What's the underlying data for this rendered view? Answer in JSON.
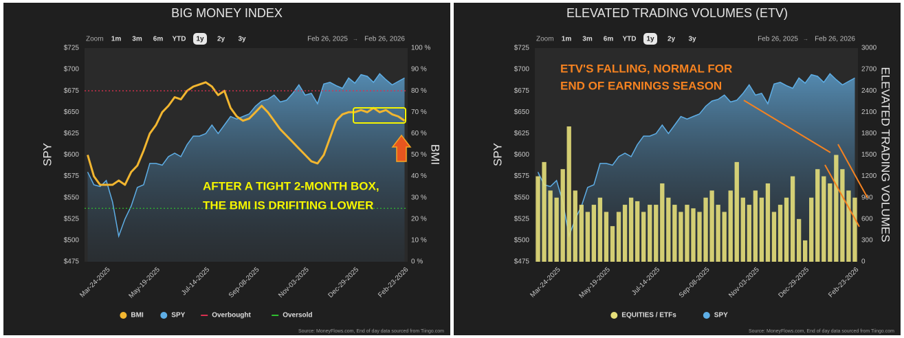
{
  "chart_data": [
    {
      "type": "line",
      "title": "BIG MONEY INDEX",
      "zoom_label": "Zoom",
      "zoom_buttons": [
        "1m",
        "3m",
        "6m",
        "YTD",
        "1y",
        "2y",
        "3y"
      ],
      "zoom_selected": "1y",
      "range_start": "Feb 26, 2025",
      "range_arrow": "→",
      "range_end": "Feb 26, 2026",
      "ylabel": "SPY",
      "y2label": "BMI",
      "categories": [
        null,
        null,
        null,
        "Mar-24-2025",
        null,
        null,
        null,
        null,
        null,
        null,
        null,
        "May-19-2025",
        null,
        null,
        null,
        null,
        null,
        null,
        null,
        "Jul-14-2025",
        null,
        null,
        null,
        null,
        null,
        null,
        null,
        "Sep-08-2025",
        null,
        null,
        null,
        null,
        null,
        null,
        null,
        "Nov-03-2025",
        null,
        null,
        null,
        null,
        null,
        null,
        null,
        "Dec-29-2025",
        null,
        null,
        null,
        null,
        null,
        null,
        null,
        "Feb-23-2026"
      ],
      "ylim": [
        475,
        725
      ],
      "yticks": [
        {
          "value": 475,
          "label": "$475"
        },
        {
          "value": 500,
          "label": "$500"
        },
        {
          "value": 525,
          "label": "$525"
        },
        {
          "value": 550,
          "label": "$550"
        },
        {
          "value": 575,
          "label": "$575"
        },
        {
          "value": 600,
          "label": "$600"
        },
        {
          "value": 625,
          "label": "$625"
        },
        {
          "value": 650,
          "label": "$650"
        },
        {
          "value": 675,
          "label": "$675"
        },
        {
          "value": 700,
          "label": "$700"
        },
        {
          "value": 725,
          "label": "$725"
        }
      ],
      "y2lim": [
        0,
        100
      ],
      "y2ticks": [
        {
          "value": 0,
          "label": "0 %"
        },
        {
          "value": 10,
          "label": "10 %"
        },
        {
          "value": 20,
          "label": "20 %"
        },
        {
          "value": 30,
          "label": "30 %"
        },
        {
          "value": 40,
          "label": "40 %"
        },
        {
          "value": 50,
          "label": "50 %"
        },
        {
          "value": 60,
          "label": "60 %"
        },
        {
          "value": 70,
          "label": "70 %"
        },
        {
          "value": 80,
          "label": "80 %"
        },
        {
          "value": 90,
          "label": "90 %"
        },
        {
          "value": 100,
          "label": "100 %"
        }
      ],
      "series": [
        {
          "name": "BMI",
          "type": "line",
          "color": "#f2b630",
          "axis": "y2",
          "values": [
            50,
            40,
            36,
            36,
            36,
            38,
            36,
            42,
            45,
            52,
            60,
            64,
            70,
            73,
            77,
            76,
            80,
            82,
            83,
            84,
            82,
            78,
            80,
            72,
            68,
            66,
            67,
            70,
            73,
            70,
            66,
            62,
            59,
            56,
            53,
            50,
            47,
            46,
            50,
            58,
            66,
            69,
            70,
            70,
            71,
            70,
            72,
            70,
            71,
            69,
            68,
            66
          ]
        },
        {
          "name": "SPY",
          "type": "area",
          "color": "#5eaee6",
          "values": [
            580,
            565,
            563,
            570,
            545,
            505,
            525,
            540,
            562,
            565,
            590,
            590,
            588,
            598,
            602,
            598,
            612,
            622,
            622,
            625,
            635,
            625,
            635,
            645,
            642,
            645,
            648,
            657,
            663,
            665,
            670,
            662,
            664,
            672,
            682,
            670,
            672,
            660,
            683,
            685,
            681,
            678,
            690,
            684,
            694,
            692,
            685,
            695,
            688,
            682,
            686,
            690
          ]
        }
      ],
      "reference_lines": [
        {
          "name": "Overbought",
          "color": "#d9304f",
          "value": 80,
          "axis": "y2"
        },
        {
          "name": "Oversold",
          "color": "#2fbf2f",
          "value": 25,
          "axis": "y2"
        }
      ],
      "annotation": {
        "lines": [
          "AFTER A TIGHT 2-MONTH BOX,",
          "THE BMI IS DRIFITING LOWER"
        ],
        "color": "#f5f500"
      },
      "source": "Source: MoneyFlows.com, End of day data sourced from Tiingo.com"
    },
    {
      "type": "bar",
      "title": "ELEVATED TRADING VOLUMES (ETV)",
      "zoom_label": "Zoom",
      "zoom_buttons": [
        "1m",
        "3m",
        "6m",
        "YTD",
        "1y",
        "2y",
        "3y"
      ],
      "zoom_selected": "1y",
      "range_start": "Feb 26, 2025",
      "range_arrow": "→",
      "range_end": "Feb 26, 2026",
      "ylabel": "SPY",
      "y2label": "ELEVATED TRADING VOLUMES",
      "categories": [
        null,
        null,
        null,
        "Mar-24-2025",
        null,
        null,
        null,
        null,
        null,
        null,
        null,
        "May-19-2025",
        null,
        null,
        null,
        null,
        null,
        null,
        null,
        "Jul-14-2025",
        null,
        null,
        null,
        null,
        null,
        null,
        null,
        "Sep-08-2025",
        null,
        null,
        null,
        null,
        null,
        null,
        null,
        "Nov-03-2025",
        null,
        null,
        null,
        null,
        null,
        null,
        null,
        "Dec-29-2025",
        null,
        null,
        null,
        null,
        null,
        null,
        null,
        "Feb-23-2026"
      ],
      "ylim": [
        475,
        725
      ],
      "yticks": [
        {
          "value": 475,
          "label": "$475"
        },
        {
          "value": 500,
          "label": "$500"
        },
        {
          "value": 525,
          "label": "$525"
        },
        {
          "value": 550,
          "label": "$550"
        },
        {
          "value": 575,
          "label": "$575"
        },
        {
          "value": 600,
          "label": "$600"
        },
        {
          "value": 625,
          "label": "$625"
        },
        {
          "value": 650,
          "label": "$650"
        },
        {
          "value": 675,
          "label": "$675"
        },
        {
          "value": 700,
          "label": "$700"
        },
        {
          "value": 725,
          "label": "$725"
        }
      ],
      "y2lim": [
        0,
        3000
      ],
      "y2ticks": [
        0,
        300,
        600,
        900,
        1200,
        1500,
        1800,
        2100,
        2400,
        2700,
        3000
      ],
      "series": [
        {
          "name": "EQUITIES / ETFs",
          "type": "bar",
          "color": "#e6df7a",
          "axis": "y2",
          "values": [
            1200,
            1400,
            1000,
            900,
            1300,
            1900,
            1000,
            800,
            700,
            800,
            900,
            700,
            500,
            700,
            800,
            900,
            850,
            700,
            800,
            800,
            1100,
            900,
            800,
            700,
            800,
            750,
            700,
            900,
            1000,
            800,
            700,
            1000,
            1400,
            900,
            800,
            1000,
            900,
            1100,
            700,
            800,
            900,
            1200,
            600,
            300,
            900,
            1300,
            1200,
            1100,
            1500,
            1300,
            1000,
            900
          ]
        },
        {
          "name": "SPY",
          "type": "area",
          "color": "#5eaee6",
          "values": [
            580,
            565,
            563,
            570,
            545,
            505,
            525,
            540,
            562,
            565,
            590,
            590,
            588,
            598,
            602,
            598,
            612,
            622,
            622,
            625,
            635,
            625,
            635,
            645,
            642,
            645,
            648,
            657,
            663,
            665,
            670,
            662,
            664,
            672,
            682,
            670,
            672,
            660,
            683,
            685,
            681,
            678,
            690,
            684,
            694,
            692,
            685,
            695,
            688,
            682,
            686,
            690
          ]
        }
      ],
      "annotation": {
        "lines": [
          "ETV'S FALLING, NORMAL FOR",
          "END OF EARNINGS SEASON"
        ],
        "color": "#f58220"
      },
      "source": "Source: MoneyFlows.com, End of day data sourced from Tiingo.com"
    }
  ]
}
